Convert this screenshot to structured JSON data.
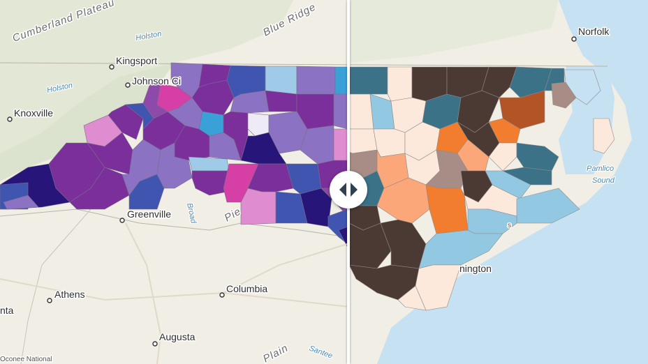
{
  "swipe": {
    "handle_icon": "left-right-chevrons-icon"
  },
  "colors": {
    "left_palette": [
      "#28157a",
      "#3a2696",
      "#3f55b0",
      "#7b2f9b",
      "#8e4aa8",
      "#8b72c2",
      "#d63fa6",
      "#e08cd0",
      "#3aa0d8",
      "#9fcbe8",
      "#eeeaf6"
    ],
    "right_palette": [
      "#4b3a33",
      "#3c7288",
      "#93c8e3",
      "#f27d2e",
      "#fba77a",
      "#fde9dc",
      "#a78d86",
      "#b35427"
    ],
    "water": "#c7e2f3",
    "land": "#f2efe6"
  },
  "labels": {
    "cumberland_plateau": "Cumberland Plateau",
    "blue_ridge": "Blue Ridge",
    "holston_1": "Holston",
    "holston_2": "Holston",
    "kingsport": "Kingsport",
    "johnson_city": "Johnson Ci",
    "knoxville": "Knoxville",
    "greenville": "Greenville",
    "broad": "Broad",
    "pied": "Pie",
    "athens": "Athens",
    "columbia": "Columbia",
    "augusta": "Augusta",
    "atlanta_partial": "nta",
    "plain": "Plain",
    "santee": "Santee",
    "oconee": "Oconee National",
    "norfolk": "Norfolk",
    "pamlico_1": "Pamlico",
    "pamlico_2": "Sound",
    "wilmington": "nington",
    "sc_partial": "s"
  }
}
